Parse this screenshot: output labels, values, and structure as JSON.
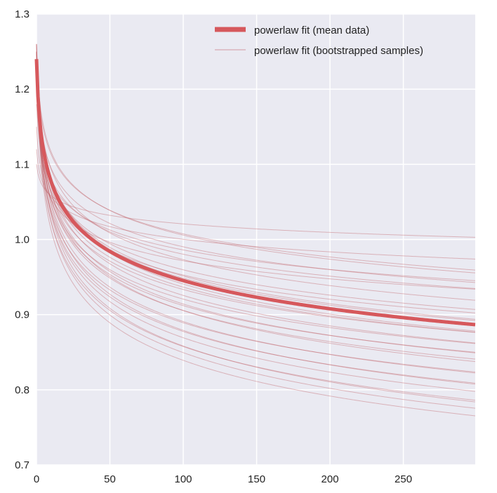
{
  "chart_data": {
    "type": "line",
    "title": "",
    "xlabel": "",
    "ylabel": "",
    "xlim": [
      0,
      299
    ],
    "ylim": [
      0.7,
      1.3
    ],
    "x_ticks": [
      0,
      50,
      100,
      150,
      200,
      250
    ],
    "y_ticks": [
      0.7,
      0.8,
      0.9,
      1.0,
      1.1,
      1.2,
      1.3
    ],
    "x_tick_labels": [
      "0",
      "50",
      "100",
      "150",
      "200",
      "250"
    ],
    "y_tick_labels": [
      "0.7",
      "0.8",
      "0.9",
      "1.0",
      "1.1",
      "1.2",
      "1.3"
    ],
    "grid": true,
    "legend_position": "top-right",
    "model": "y = a * (x + 1)^(-b)",
    "series": [
      {
        "name": "powerlaw fit (mean data)",
        "style": "thick",
        "params": [
          {
            "a": 1.24,
            "b": 0.0588
          }
        ]
      },
      {
        "name": "powerlaw fit (bootstrapped samples)",
        "style": "thin",
        "params": [
          {
            "a": 1.1,
            "b": 0.0162
          },
          {
            "a": 1.25,
            "b": 0.0471
          },
          {
            "a": 1.12,
            "b": 0.0245
          },
          {
            "a": 1.24,
            "b": 0.045
          },
          {
            "a": 1.18,
            "b": 0.0389
          },
          {
            "a": 1.22,
            "b": 0.0452
          },
          {
            "a": 1.2,
            "b": 0.0438
          },
          {
            "a": 1.15,
            "b": 0.0365
          },
          {
            "a": 1.24,
            "b": 0.0525
          },
          {
            "a": 1.22,
            "b": 0.052
          },
          {
            "a": 1.2,
            "b": 0.05
          },
          {
            "a": 1.24,
            "b": 0.0574
          },
          {
            "a": 1.23,
            "b": 0.0563
          },
          {
            "a": 1.25,
            "b": 0.0601
          },
          {
            "a": 1.22,
            "b": 0.058
          },
          {
            "a": 1.24,
            "b": 0.0608
          },
          {
            "a": 1.26,
            "b": 0.0633
          },
          {
            "a": 1.22,
            "b": 0.061
          },
          {
            "a": 1.25,
            "b": 0.0651
          },
          {
            "a": 1.23,
            "b": 0.0648
          },
          {
            "a": 1.25,
            "b": 0.0678
          },
          {
            "a": 1.24,
            "b": 0.0681
          },
          {
            "a": 1.26,
            "b": 0.0716
          },
          {
            "a": 1.23,
            "b": 0.0703
          },
          {
            "a": 1.25,
            "b": 0.0734
          },
          {
            "a": 1.24,
            "b": 0.0749
          },
          {
            "a": 1.26,
            "b": 0.078
          },
          {
            "a": 1.25,
            "b": 0.0787
          },
          {
            "a": 1.24,
            "b": 0.0799
          },
          {
            "a": 1.26,
            "b": 0.0832
          },
          {
            "a": 1.25,
            "b": 0.0837
          },
          {
            "a": 1.24,
            "b": 0.0846
          }
        ]
      }
    ],
    "colors": {
      "mean_line": "#d6585c",
      "sample_line": "#c0616a",
      "axes_bg": "#eaeaf2",
      "grid": "#ffffff"
    }
  }
}
